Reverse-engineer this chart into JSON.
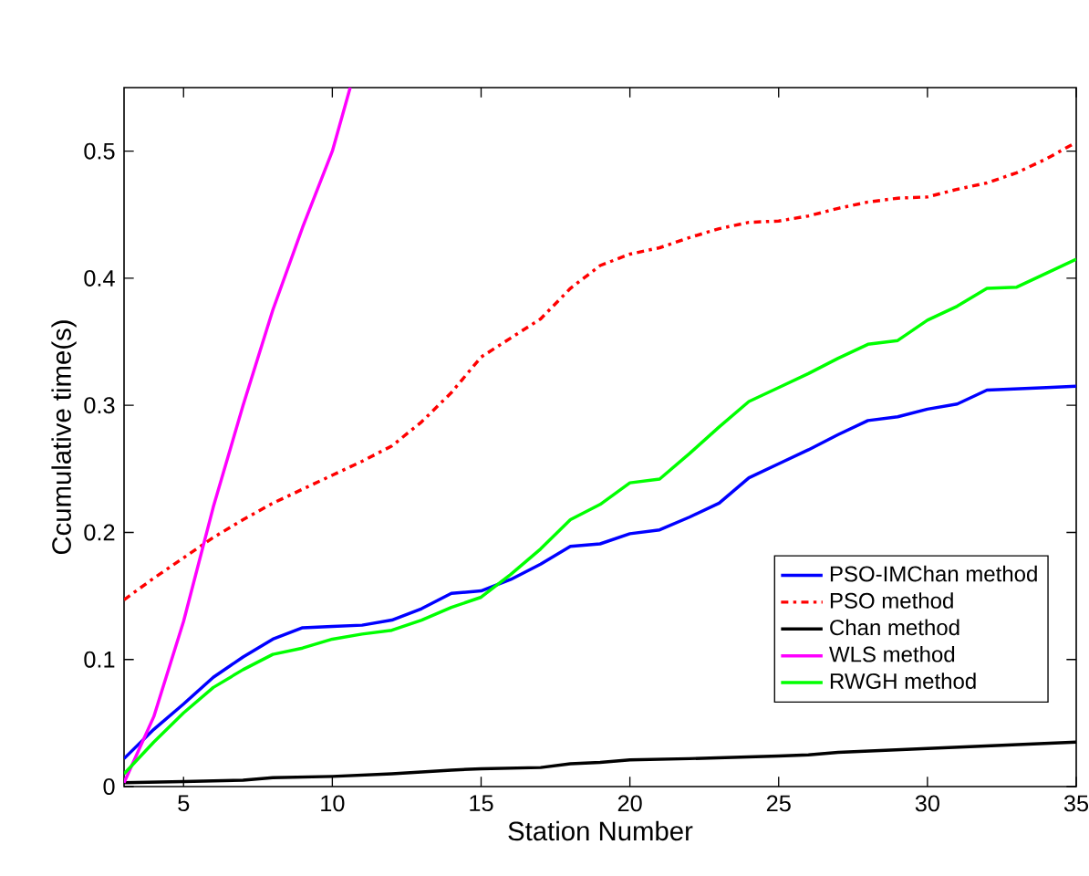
{
  "chart_data": {
    "type": "line",
    "xlabel": "Station Number",
    "ylabel": "Ccumulative time(s)",
    "xlim": [
      3,
      35
    ],
    "ylim": [
      0,
      0.55
    ],
    "xticks": [
      5,
      10,
      15,
      20,
      25,
      30,
      35
    ],
    "yticks": [
      0,
      0.1,
      0.2,
      0.3,
      0.4,
      0.5
    ],
    "grid": false,
    "legend": "bottom right",
    "marker": "none",
    "series": [
      {
        "name": "PSO-IMChan method",
        "color": "#0000ff",
        "line_style": "solid",
        "x": [
          3,
          4,
          5,
          6,
          7,
          8,
          9,
          10,
          11,
          12,
          13,
          14,
          15,
          16,
          17,
          18,
          19,
          20,
          21,
          22,
          23,
          24,
          25,
          26,
          27,
          28,
          29,
          30,
          31,
          32,
          33,
          34,
          35
        ],
        "values": [
          0.022,
          0.045,
          0.065,
          0.086,
          0.102,
          0.116,
          0.125,
          0.126,
          0.127,
          0.131,
          0.14,
          0.152,
          0.154,
          0.163,
          0.175,
          0.189,
          0.191,
          0.199,
          0.202,
          0.212,
          0.223,
          0.243,
          0.254,
          0.265,
          0.277,
          0.288,
          0.291,
          0.297,
          0.301,
          0.312,
          0.313,
          0.314,
          0.315
        ]
      },
      {
        "name": "PSO method",
        "color": "#ff0000",
        "line_style": "dashdot",
        "x": [
          3,
          4,
          5,
          6,
          7,
          8,
          9,
          10,
          11,
          12,
          13,
          14,
          15,
          16,
          17,
          18,
          19,
          20,
          21,
          22,
          23,
          24,
          25,
          26,
          27,
          28,
          29,
          30,
          31,
          32,
          33,
          34,
          35
        ],
        "values": [
          0.147,
          0.164,
          0.18,
          0.196,
          0.21,
          0.223,
          0.234,
          0.245,
          0.256,
          0.268,
          0.287,
          0.31,
          0.338,
          0.353,
          0.368,
          0.392,
          0.41,
          0.419,
          0.424,
          0.432,
          0.439,
          0.444,
          0.445,
          0.449,
          0.455,
          0.46,
          0.463,
          0.464,
          0.47,
          0.475,
          0.483,
          0.494,
          0.507
        ]
      },
      {
        "name": "Chan method",
        "color": "#000000",
        "line_style": "solid",
        "x": [
          3,
          5,
          7,
          8,
          10,
          12,
          14,
          15,
          17,
          18,
          19,
          20,
          22,
          25,
          26,
          27,
          30,
          35
        ],
        "values": [
          0.003,
          0.004,
          0.005,
          0.007,
          0.008,
          0.01,
          0.013,
          0.014,
          0.015,
          0.018,
          0.019,
          0.021,
          0.022,
          0.024,
          0.025,
          0.027,
          0.03,
          0.035
        ]
      },
      {
        "name": "WLS method",
        "color": "#ff00ff",
        "line_style": "solid",
        "x": [
          3,
          4,
          5,
          6,
          7,
          8,
          9,
          10,
          10.6
        ],
        "values": [
          0.003,
          0.055,
          0.13,
          0.22,
          0.3,
          0.375,
          0.44,
          0.5,
          0.55
        ]
      },
      {
        "name": "RWGH method",
        "color": "#00ff00",
        "line_style": "solid",
        "x": [
          3,
          4,
          5,
          6,
          7,
          8,
          9,
          10,
          11,
          12,
          13,
          14,
          15,
          16,
          17,
          18,
          19,
          20,
          21,
          22,
          23,
          24,
          25,
          26,
          27,
          28,
          29,
          30,
          31,
          32,
          33,
          34,
          35
        ],
        "values": [
          0.01,
          0.035,
          0.058,
          0.078,
          0.092,
          0.104,
          0.109,
          0.116,
          0.12,
          0.123,
          0.131,
          0.141,
          0.149,
          0.167,
          0.187,
          0.21,
          0.222,
          0.239,
          0.242,
          0.262,
          0.283,
          0.303,
          0.314,
          0.325,
          0.337,
          0.348,
          0.351,
          0.367,
          0.378,
          0.392,
          0.393,
          0.404,
          0.415
        ]
      }
    ]
  }
}
